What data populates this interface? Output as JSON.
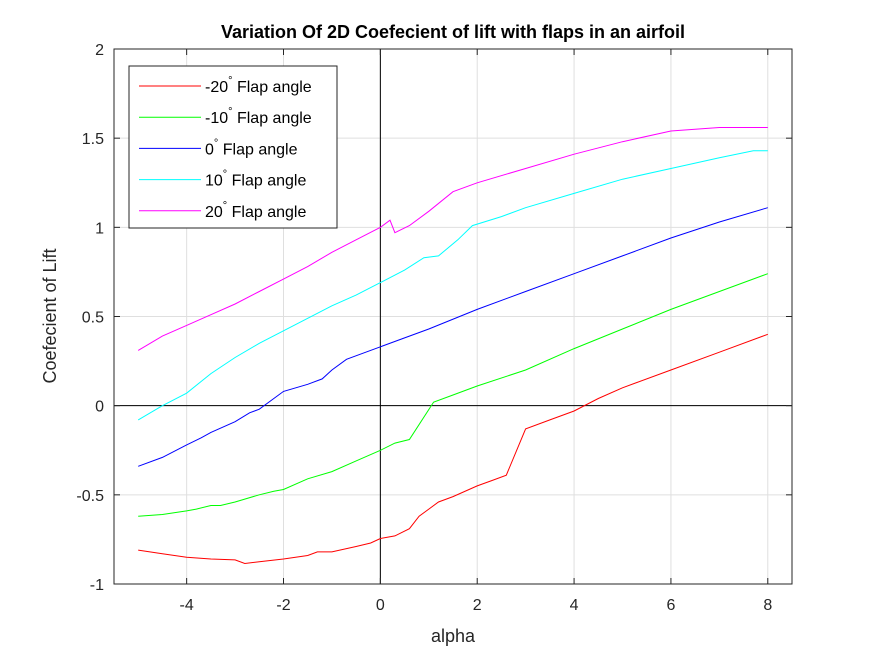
{
  "chart_data": {
    "type": "line",
    "title": "Variation Of 2D Coefecient of lift with flaps in an airfoil",
    "xlabel": "alpha",
    "ylabel": "Coefecient of Lift",
    "xlim": [
      -5.5,
      8.5
    ],
    "ylim": [
      -1,
      2
    ],
    "xticks": [
      -4,
      -2,
      0,
      2,
      4,
      6,
      8
    ],
    "yticks": [
      -1,
      -0.5,
      0,
      0.5,
      1,
      1.5,
      2
    ],
    "xtick_labels": [
      "-4",
      "-2",
      "0",
      "2",
      "4",
      "6",
      "8"
    ],
    "ytick_labels": [
      "-1",
      "-0.5",
      "0",
      "0.5",
      "1",
      "1.5",
      "2"
    ],
    "grid": true,
    "zero_lines": true,
    "legend_position": "top-left",
    "series": [
      {
        "name": "-20° Flap angle",
        "legend_main": "-20",
        "legend_sup": "°",
        "legend_rest": " Flap angle",
        "color": "#ff0000",
        "x": [
          -5,
          -4.5,
          -4,
          -3.5,
          -3,
          -2.8,
          -2.5,
          -2,
          -1.5,
          -1.3,
          -1,
          -0.5,
          -0.2,
          0,
          0.3,
          0.6,
          0.8,
          1,
          1.2,
          1.5,
          2,
          2.3,
          2.6,
          3,
          3.5,
          4,
          4.5,
          5,
          6,
          7,
          8
        ],
        "y": [
          -0.81,
          -0.83,
          -0.85,
          -0.86,
          -0.865,
          -0.885,
          -0.875,
          -0.86,
          -0.84,
          -0.82,
          -0.82,
          -0.79,
          -0.77,
          -0.745,
          -0.73,
          -0.69,
          -0.62,
          -0.58,
          -0.54,
          -0.51,
          -0.45,
          -0.42,
          -0.39,
          -0.13,
          -0.08,
          -0.03,
          0.04,
          0.1,
          0.2,
          0.3,
          0.4
        ]
      },
      {
        "name": "-10° Flap angle",
        "legend_main": "-10",
        "legend_sup": "°",
        "legend_rest": " Flap angle",
        "color": "#00ff00",
        "x": [
          -5,
          -4.5,
          -4,
          -3.8,
          -3.5,
          -3.3,
          -3,
          -2.5,
          -2.2,
          -2,
          -1.5,
          -1,
          -0.5,
          0,
          0.3,
          0.6,
          1.1,
          1.5,
          2,
          3,
          4,
          5,
          6,
          7,
          8
        ],
        "y": [
          -0.62,
          -0.61,
          -0.59,
          -0.58,
          -0.56,
          -0.56,
          -0.54,
          -0.5,
          -0.48,
          -0.47,
          -0.41,
          -0.37,
          -0.31,
          -0.25,
          -0.21,
          -0.19,
          0.02,
          0.06,
          0.11,
          0.2,
          0.32,
          0.43,
          0.54,
          0.64,
          0.74
        ]
      },
      {
        "name": "0° Flap angle",
        "legend_main": "0",
        "legend_sup": "°",
        "legend_rest": " Flap angle",
        "color": "#0000ff",
        "x": [
          -5,
          -4.5,
          -4,
          -3.7,
          -3.5,
          -3,
          -2.7,
          -2.5,
          -2,
          -1.5,
          -1.2,
          -1,
          -0.7,
          -0.3,
          0,
          0.5,
          1,
          2,
          3,
          4,
          5,
          6,
          7,
          8
        ],
        "y": [
          -0.34,
          -0.29,
          -0.22,
          -0.18,
          -0.15,
          -0.09,
          -0.04,
          -0.02,
          0.08,
          0.12,
          0.15,
          0.2,
          0.26,
          0.3,
          0.33,
          0.38,
          0.43,
          0.54,
          0.64,
          0.74,
          0.84,
          0.94,
          1.03,
          1.11
        ]
      },
      {
        "name": "10° Flap angle",
        "legend_main": "10",
        "legend_sup": "°",
        "legend_rest": " Flap angle",
        "color": "#00ffff",
        "x": [
          -5,
          -4.5,
          -4,
          -3.5,
          -3,
          -2.5,
          -2,
          -1.5,
          -1,
          -0.5,
          0,
          0.5,
          0.9,
          1.2,
          1.6,
          1.9,
          2.5,
          3,
          4,
          5,
          6,
          7,
          7.7,
          8
        ],
        "y": [
          -0.08,
          0.0,
          0.07,
          0.18,
          0.27,
          0.35,
          0.42,
          0.49,
          0.56,
          0.62,
          0.69,
          0.76,
          0.83,
          0.84,
          0.93,
          1.01,
          1.06,
          1.11,
          1.19,
          1.27,
          1.33,
          1.39,
          1.43,
          1.43
        ]
      },
      {
        "name": "20° Flap angle",
        "legend_main": "20",
        "legend_sup": "°",
        "legend_rest": " Flap angle",
        "color": "#ff00ff",
        "x": [
          -5,
          -4.5,
          -4,
          -3.5,
          -3,
          -2.5,
          -2,
          -1.5,
          -1,
          -0.5,
          0,
          0.2,
          0.3,
          0.6,
          1,
          1.5,
          2,
          3,
          4,
          5,
          6,
          6.5,
          7,
          7.5,
          8
        ],
        "y": [
          0.31,
          0.39,
          0.45,
          0.51,
          0.57,
          0.64,
          0.71,
          0.78,
          0.86,
          0.93,
          1.0,
          1.04,
          0.97,
          1.01,
          1.09,
          1.2,
          1.25,
          1.33,
          1.41,
          1.48,
          1.54,
          1.55,
          1.56,
          1.56,
          1.56
        ]
      }
    ]
  }
}
